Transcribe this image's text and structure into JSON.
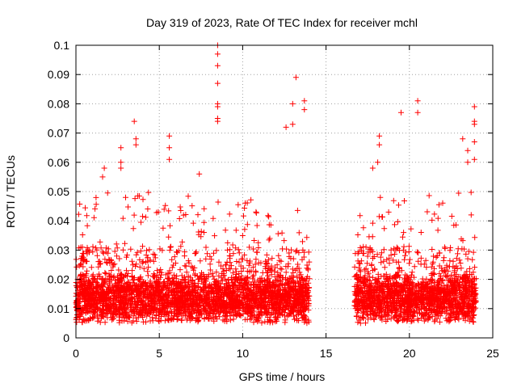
{
  "chart_data": {
    "type": "scatter",
    "title": "Day 319 of 2023, Rate Of TEC Index for receiver mchl",
    "xlabel": "GPS time / hours",
    "ylabel": "ROTI / TECUs",
    "xlim": [
      0,
      25
    ],
    "ylim": [
      0,
      0.1
    ],
    "x_ticks": [
      0,
      5,
      10,
      15,
      20,
      25
    ],
    "y_ticks": [
      0,
      0.01,
      0.02,
      0.03,
      0.04,
      0.05,
      0.06,
      0.07,
      0.08,
      0.09,
      0.1
    ],
    "grid": true,
    "marker": "+",
    "color": "#ff0000",
    "series": [
      {
        "data_segments": [
          {
            "x_start": 0.0,
            "x_end": 14.0,
            "typical_range": [
              0.005,
              0.025
            ]
          },
          {
            "x_start": 16.7,
            "x_end": 24.0,
            "typical_range": [
              0.005,
              0.025
            ]
          }
        ],
        "notable_points": [
          [
            8.5,
            0.1
          ],
          [
            8.5,
            0.097
          ],
          [
            8.5,
            0.093
          ],
          [
            8.5,
            0.087
          ],
          [
            8.5,
            0.08
          ],
          [
            8.5,
            0.079
          ],
          [
            8.5,
            0.075
          ],
          [
            8.5,
            0.074
          ],
          [
            13.2,
            0.089
          ],
          [
            13.7,
            0.081
          ],
          [
            13.7,
            0.078
          ],
          [
            13.0,
            0.08
          ],
          [
            13.0,
            0.073
          ],
          [
            12.6,
            0.072
          ],
          [
            3.5,
            0.074
          ],
          [
            3.6,
            0.068
          ],
          [
            3.6,
            0.066
          ],
          [
            5.6,
            0.069
          ],
          [
            5.6,
            0.065
          ],
          [
            5.6,
            0.061
          ],
          [
            2.7,
            0.065
          ],
          [
            2.7,
            0.06
          ],
          [
            2.7,
            0.058
          ],
          [
            1.7,
            0.058
          ],
          [
            1.6,
            0.055
          ],
          [
            20.5,
            0.081
          ],
          [
            20.5,
            0.077
          ],
          [
            19.5,
            0.077
          ],
          [
            18.2,
            0.069
          ],
          [
            18.2,
            0.066
          ],
          [
            18.1,
            0.06
          ],
          [
            17.8,
            0.058
          ],
          [
            23.9,
            0.079
          ],
          [
            23.9,
            0.074
          ],
          [
            23.9,
            0.073
          ],
          [
            23.9,
            0.067
          ],
          [
            23.9,
            0.061
          ],
          [
            23.2,
            0.068
          ],
          [
            23.5,
            0.064
          ],
          [
            23.5,
            0.06
          ],
          [
            7.4,
            0.056
          ],
          [
            10.8,
            0.043
          ]
        ]
      }
    ]
  }
}
